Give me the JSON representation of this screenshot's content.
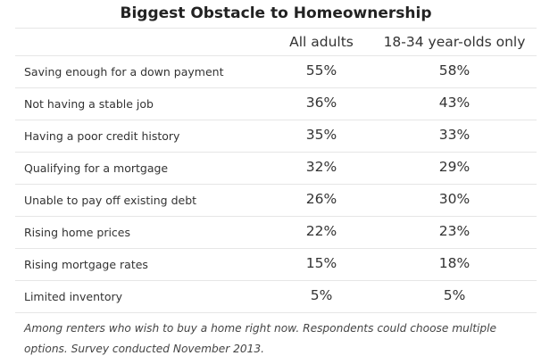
{
  "table": {
    "title": "Biggest Obstacle to Homeownership",
    "columns": [
      "All adults",
      "18-34 year-olds only"
    ],
    "rows": [
      {
        "label": "Saving enough for a down payment",
        "all_adults": "55%",
        "young_adults": "58%"
      },
      {
        "label": "Not having a stable job",
        "all_adults": "36%",
        "young_adults": "43%"
      },
      {
        "label": "Having a poor credit history",
        "all_adults": "35%",
        "young_adults": "33%"
      },
      {
        "label": "Qualifying for a mortgage",
        "all_adults": "32%",
        "young_adults": "29%"
      },
      {
        "label": "Unable to pay off existing debt",
        "all_adults": "26%",
        "young_adults": "30%"
      },
      {
        "label": "Rising home prices",
        "all_adults": "22%",
        "young_adults": "23%"
      },
      {
        "label": "Rising mortgage rates",
        "all_adults": "15%",
        "young_adults": "18%"
      },
      {
        "label": "Limited inventory",
        "all_adults": "5%",
        "young_adults": "5%"
      }
    ],
    "footnote": "Among renters who wish to buy a home right now. Respondents could choose multiple options. Survey conducted November 2013."
  }
}
